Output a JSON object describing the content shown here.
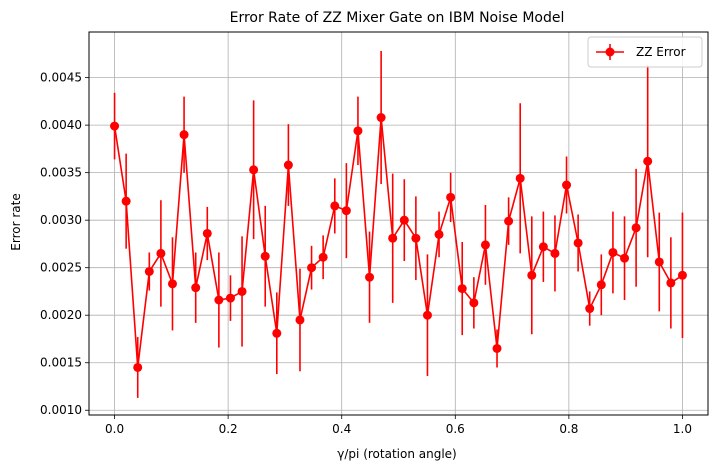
{
  "chart_data": {
    "type": "line",
    "title": "Error Rate of ZZ Mixer Gate on IBM Noise Model",
    "xlabel": "γ/pi  (rotation angle)",
    "ylabel": "Error rate",
    "xlim": [
      -0.045,
      1.045
    ],
    "ylim": [
      0.00095,
      0.00498
    ],
    "xticks": [
      0.0,
      0.2,
      0.4,
      0.6,
      0.8,
      1.0
    ],
    "xtick_labels": [
      "0.0",
      "0.2",
      "0.4",
      "0.6",
      "0.8",
      "1.0"
    ],
    "yticks": [
      0.001,
      0.0015,
      0.002,
      0.0025,
      0.003,
      0.0035,
      0.004,
      0.0045
    ],
    "ytick_labels": [
      "0.0010",
      "0.0015",
      "0.0020",
      "0.0025",
      "0.0030",
      "0.0035",
      "0.0040",
      "0.0045"
    ],
    "grid": true,
    "legend_position": "top-right",
    "series": [
      {
        "name": "ZZ Error",
        "color": "#ff0000",
        "marker": "circle",
        "x": [
          0.0,
          0.0204,
          0.0408,
          0.0612,
          0.0816,
          0.102,
          0.1224,
          0.1429,
          0.1633,
          0.1837,
          0.2041,
          0.2245,
          0.2449,
          0.2653,
          0.2857,
          0.3061,
          0.3265,
          0.3469,
          0.3673,
          0.3878,
          0.4082,
          0.4286,
          0.449,
          0.4694,
          0.4898,
          0.5102,
          0.5306,
          0.551,
          0.5714,
          0.5918,
          0.6122,
          0.6327,
          0.6531,
          0.6735,
          0.6939,
          0.7143,
          0.7347,
          0.7551,
          0.7755,
          0.7959,
          0.8163,
          0.8367,
          0.8571,
          0.8776,
          0.898,
          0.9184,
          0.9388,
          0.9592,
          0.9796,
          1.0
        ],
        "y": [
          0.00399,
          0.0032,
          0.00145,
          0.00246,
          0.00265,
          0.00233,
          0.0039,
          0.00229,
          0.00286,
          0.00216,
          0.00218,
          0.00225,
          0.00353,
          0.00262,
          0.00181,
          0.00358,
          0.00195,
          0.0025,
          0.00261,
          0.00315,
          0.0031,
          0.00394,
          0.0024,
          0.00408,
          0.00281,
          0.003,
          0.00281,
          0.002,
          0.00285,
          0.00324,
          0.00228,
          0.00213,
          0.00274,
          0.00165,
          0.00299,
          0.00344,
          0.00242,
          0.00272,
          0.00265,
          0.00337,
          0.00276,
          0.00207,
          0.00232,
          0.00266,
          0.0026,
          0.00292,
          0.00362,
          0.00256,
          0.00234,
          0.00242
        ],
        "yerr": [
          0.00035,
          0.0005,
          0.00032,
          0.0002,
          0.00056,
          0.00049,
          0.0004,
          0.00037,
          0.00028,
          0.0005,
          0.00024,
          0.00058,
          0.00073,
          0.00053,
          0.00043,
          0.00043,
          0.00054,
          0.00023,
          0.00023,
          0.00029,
          0.0005,
          0.00036,
          0.00048,
          0.0007,
          0.00068,
          0.00043,
          0.00044,
          0.00064,
          0.00024,
          0.00026,
          0.00049,
          0.00027,
          0.00042,
          0.0002,
          0.00025,
          0.00079,
          0.00062,
          0.00037,
          0.0004,
          0.0003,
          0.0003,
          0.00018,
          0.00032,
          0.00043,
          0.00044,
          0.00062,
          0.00101,
          0.00052,
          0.00048,
          0.00066
        ]
      }
    ]
  }
}
